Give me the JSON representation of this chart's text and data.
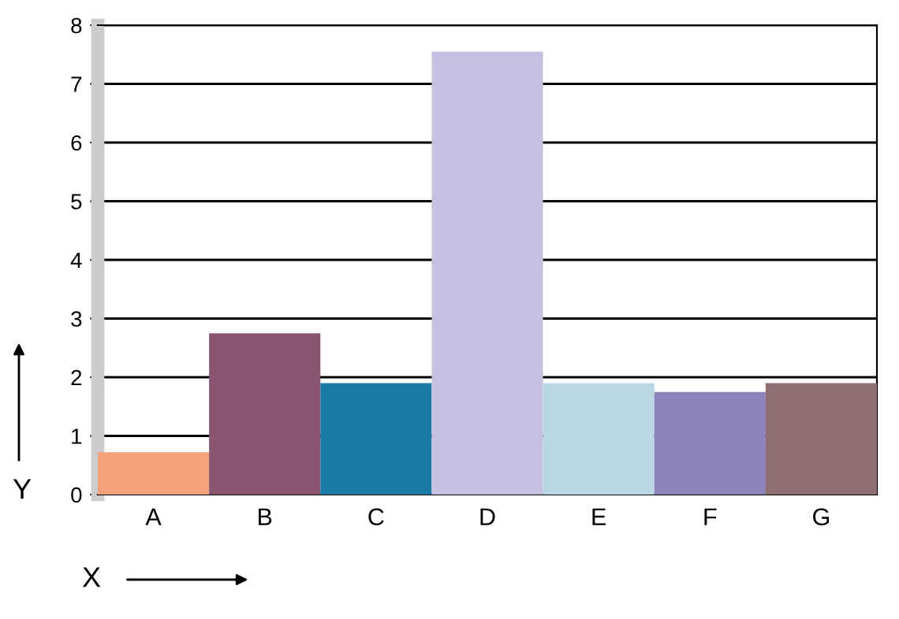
{
  "chart_data": {
    "type": "bar",
    "xlabel": "X",
    "ylabel": "Y",
    "categories": [
      "A",
      "B",
      "C",
      "D",
      "E",
      "F",
      "G"
    ],
    "values": [
      0.72,
      2.75,
      1.9,
      7.55,
      1.9,
      1.75,
      1.9
    ],
    "colors": [
      "#f4a27a",
      "#8a5570",
      "#1a7aa6",
      "#c6bfe0",
      "#b8d9e4",
      "#8e82bb",
      "#8e6e72"
    ],
    "ylim": [
      0,
      8
    ],
    "yticks": [
      0,
      1,
      2,
      3,
      4,
      5,
      6,
      7,
      8
    ],
    "grid": "y",
    "legend": false
  }
}
